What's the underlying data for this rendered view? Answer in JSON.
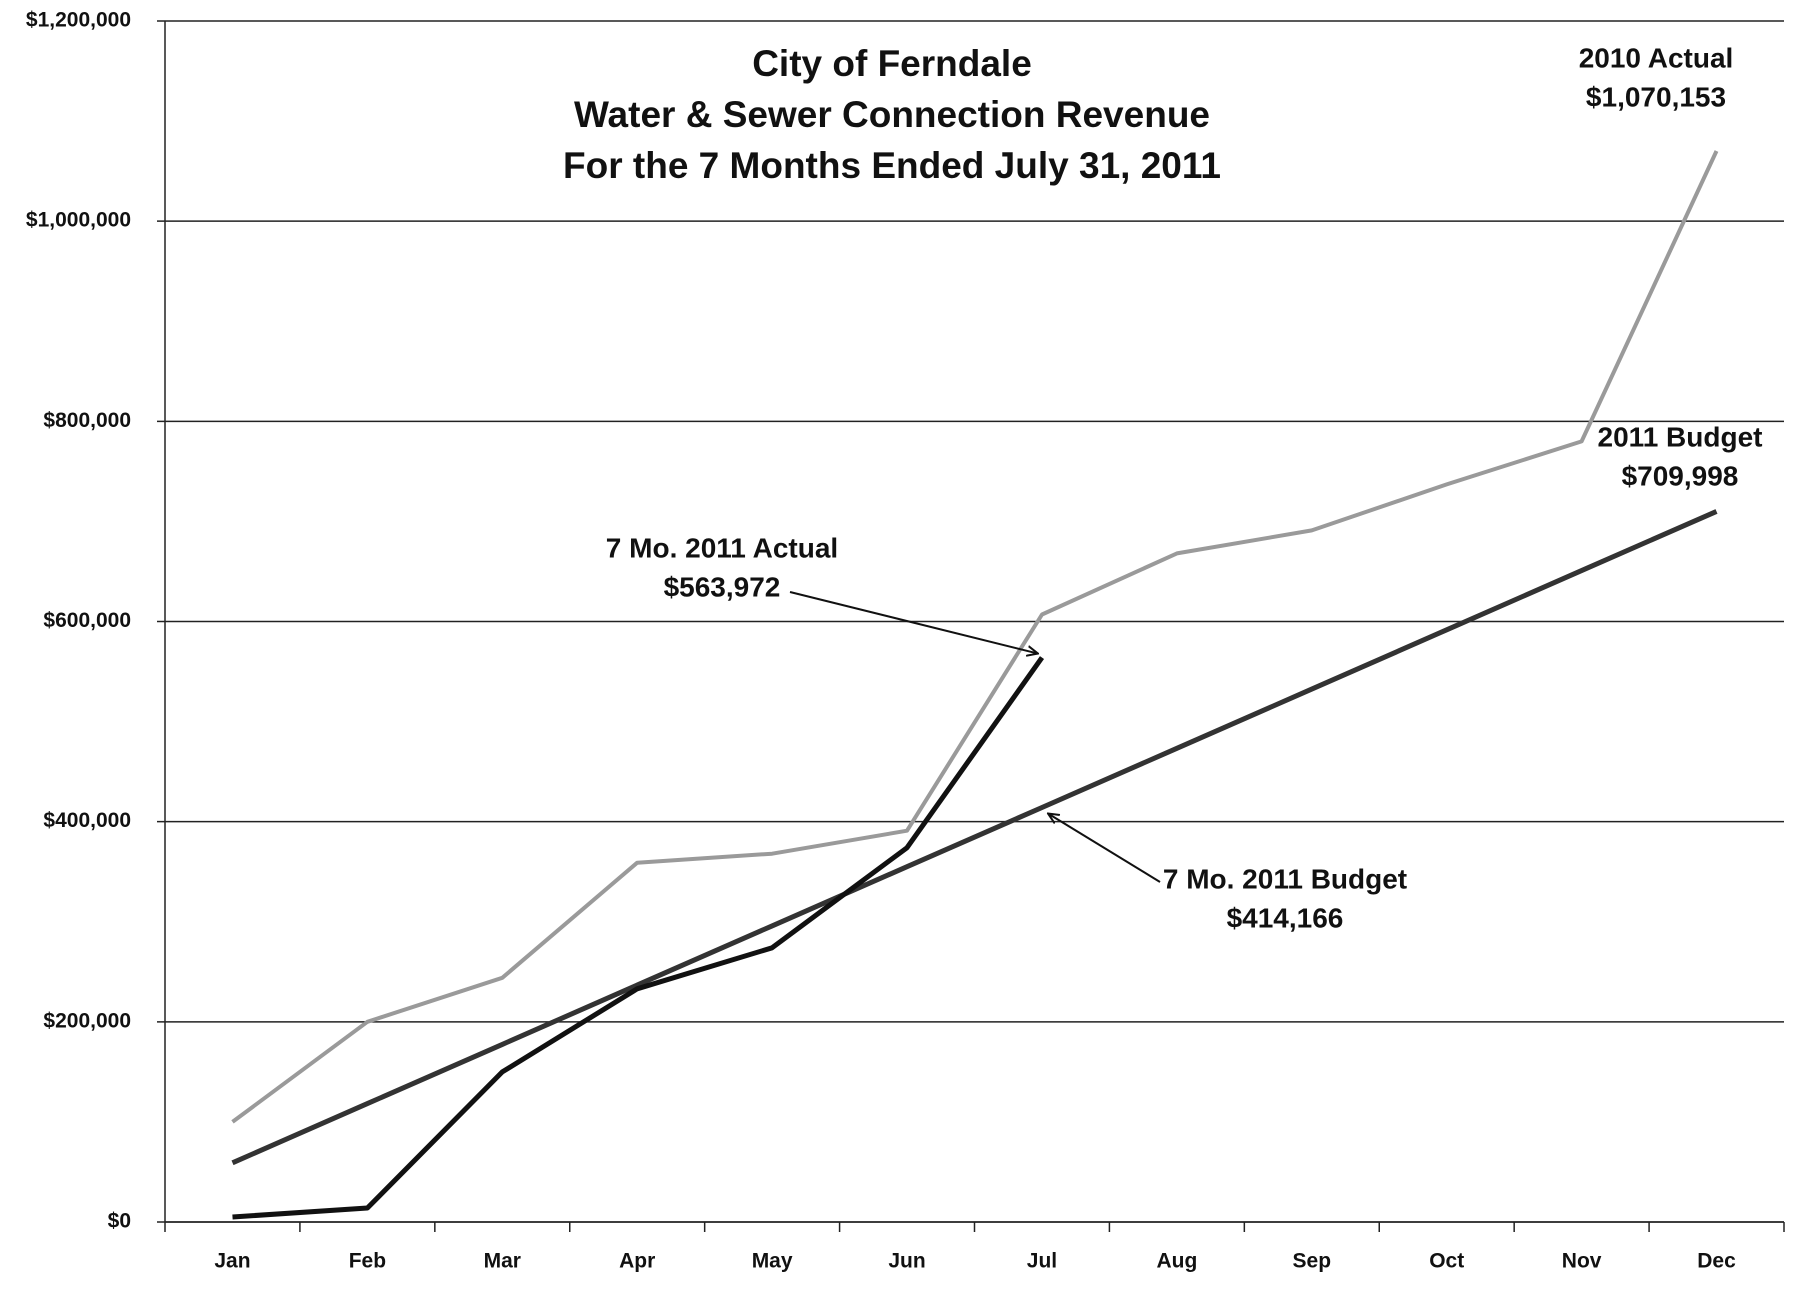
{
  "chart_data": {
    "type": "line",
    "title": [
      "City of Ferndale",
      "Water & Sewer Connection Revenue",
      "For the 7 Months Ended July 31, 2011"
    ],
    "categories": [
      "Jan",
      "Feb",
      "Mar",
      "Apr",
      "May",
      "Jun",
      "Jul",
      "Aug",
      "Sep",
      "Oct",
      "Nov",
      "Dec"
    ],
    "series": [
      {
        "name": "2010 Actual",
        "color": "#9a9a9a",
        "values": [
          100000,
          200000,
          244000,
          359000,
          368000,
          391000,
          607000,
          668000,
          691000,
          737000,
          780000,
          1070153
        ]
      },
      {
        "name": "2011 Budget",
        "color": "#333333",
        "values": [
          59167,
          118333,
          177500,
          236666,
          295833,
          355000,
          414166,
          473332,
          532499,
          591665,
          650832,
          709998
        ]
      },
      {
        "name": "2011 Actual",
        "color": "#111111",
        "values": [
          5000,
          14000,
          150000,
          233000,
          274000,
          374000,
          563972,
          null,
          null,
          null,
          null,
          null
        ]
      }
    ],
    "ylim": [
      0,
      1200000
    ],
    "yticks": [
      {
        "value": 0,
        "label": "$0"
      },
      {
        "value": 200000,
        "label": "$200,000"
      },
      {
        "value": 400000,
        "label": "$400,000"
      },
      {
        "value": 600000,
        "label": "$600,000"
      },
      {
        "value": 800000,
        "label": "$800,000"
      },
      {
        "value": 1000000,
        "label": "$1,000,000"
      },
      {
        "value": 1200000,
        "label": "$1,200,000"
      }
    ],
    "grid": true,
    "annotations": [
      {
        "text": [
          "2010 Actual",
          "$1,070,153"
        ]
      },
      {
        "text": [
          "2011 Budget",
          "$709,998"
        ]
      },
      {
        "text": [
          "7 Mo. 2011 Actual",
          "$563,972"
        ]
      },
      {
        "text": [
          "7 Mo. 2011 Budget",
          "$414,166"
        ]
      }
    ]
  }
}
